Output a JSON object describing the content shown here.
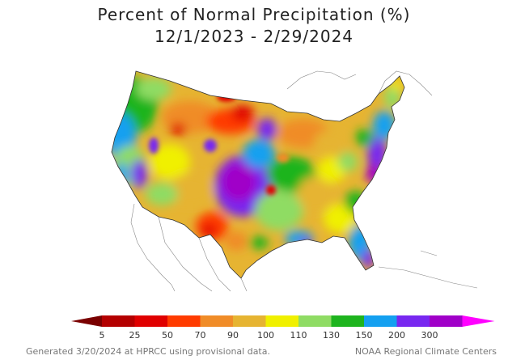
{
  "title": {
    "line1": "Percent of Normal Precipitation (%)",
    "line2": "12/1/2023 - 2/29/2024"
  },
  "legend": {
    "labels": [
      "5",
      "25",
      "50",
      "70",
      "90",
      "100",
      "110",
      "130",
      "150",
      "200",
      "300"
    ],
    "colors": [
      "#b40000",
      "#e00000",
      "#ff3b00",
      "#f08c28",
      "#e6b432",
      "#f0f000",
      "#8fdc64",
      "#1eb41e",
      "#14a0f0",
      "#7828f0",
      "#a000c8",
      "#ff00ff"
    ],
    "low_color": "#7a0000"
  },
  "footer": {
    "left": "Generated 3/20/2024 at HPRCC using provisional data.",
    "right": "NOAA Regional Climate Centers"
  }
}
